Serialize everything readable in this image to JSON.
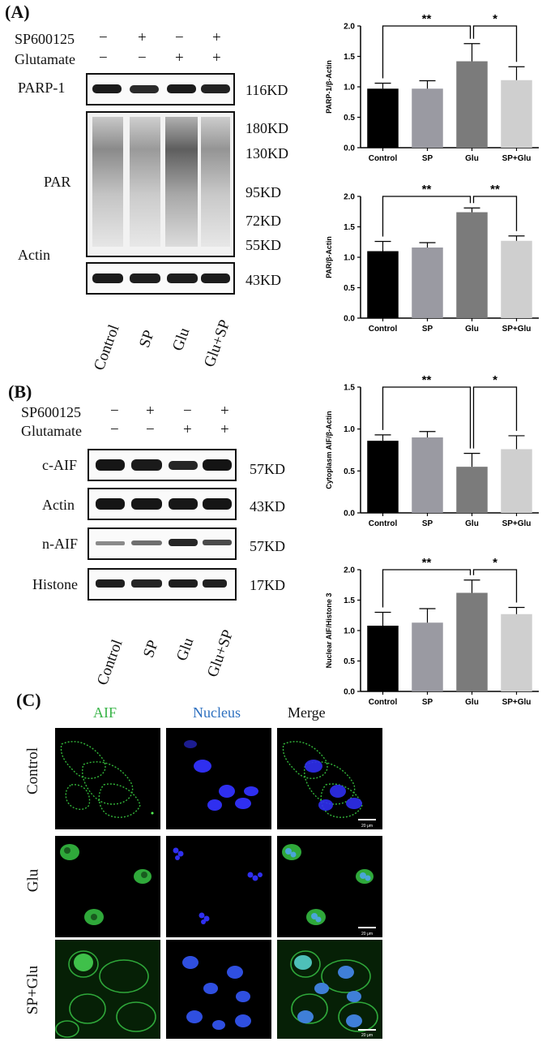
{
  "panels": {
    "A": "(A)",
    "B": "(B)",
    "C": "(C)"
  },
  "blotA": {
    "treatments": [
      {
        "label": "SP600125",
        "signs": [
          "−",
          "+",
          "−",
          "+"
        ]
      },
      {
        "label": "Glutamate",
        "signs": [
          "−",
          "−",
          "+",
          "+"
        ]
      }
    ],
    "bands": [
      {
        "label": "PARP-1",
        "kd": "116KD"
      },
      {
        "label": "PAR",
        "kd": ""
      },
      {
        "label": "Actin",
        "kd": "43KD"
      }
    ],
    "par_markers": [
      "180KD",
      "130KD",
      "95KD",
      "72KD",
      "55KD"
    ],
    "lanes": [
      "Control",
      "SP",
      "Glu",
      "Glu+SP"
    ]
  },
  "blotB": {
    "treatments": [
      {
        "label": "SP600125",
        "signs": [
          "−",
          "+",
          "−",
          "+"
        ]
      },
      {
        "label": "Glutamate",
        "signs": [
          "−",
          "−",
          "+",
          "+"
        ]
      }
    ],
    "bands": [
      {
        "label": "c-AIF",
        "kd": "57KD"
      },
      {
        "label": "Actin",
        "kd": "43KD"
      },
      {
        "label": "n-AIF",
        "kd": "57KD"
      },
      {
        "label": "Histone",
        "kd": "17KD"
      }
    ],
    "lanes": [
      "Control",
      "SP",
      "Glu",
      "Glu+SP"
    ]
  },
  "chart_data": [
    {
      "type": "bar",
      "categories": [
        "Control",
        "SP",
        "Glu",
        "SP+Glu"
      ],
      "values": [
        0.97,
        0.97,
        1.42,
        1.11
      ],
      "errors": [
        0.09,
        0.13,
        0.29,
        0.22
      ],
      "ylabel": "PARP-1/β-Actin",
      "ylim": [
        0,
        2.0
      ],
      "yticks": [
        "0.0",
        "0.5",
        "1.0",
        "1.5",
        "2.0"
      ],
      "colors": [
        "#000000",
        "#9a9aa2",
        "#7b7b7b",
        "#cfcfcf"
      ],
      "annotations": [
        {
          "from": "Control",
          "to": "Glu",
          "label": "**"
        },
        {
          "from": "Glu",
          "to": "SP+Glu",
          "label": "*"
        }
      ]
    },
    {
      "type": "bar",
      "categories": [
        "Control",
        "SP",
        "Glu",
        "SP+Glu"
      ],
      "values": [
        1.1,
        1.16,
        1.74,
        1.27
      ],
      "errors": [
        0.16,
        0.08,
        0.07,
        0.08
      ],
      "ylabel": "PAR/β-Actin",
      "ylim": [
        0,
        2.0
      ],
      "yticks": [
        "0.0",
        "0.5",
        "1.0",
        "1.5",
        "2.0"
      ],
      "colors": [
        "#000000",
        "#9a9aa2",
        "#7b7b7b",
        "#cfcfcf"
      ],
      "annotations": [
        {
          "from": "Control",
          "to": "Glu",
          "label": "**"
        },
        {
          "from": "Glu",
          "to": "SP+Glu",
          "label": "**"
        }
      ]
    },
    {
      "type": "bar",
      "categories": [
        "Control",
        "SP",
        "Glu",
        "SP+Glu"
      ],
      "values": [
        0.86,
        0.9,
        0.55,
        0.76
      ],
      "errors": [
        0.07,
        0.07,
        0.16,
        0.16
      ],
      "ylabel": "Cytoplasm AIF/β-Actin",
      "ylim": [
        0,
        1.5
      ],
      "yticks": [
        "0.0",
        "0.5",
        "1.0",
        "1.5"
      ],
      "colors": [
        "#000000",
        "#9a9aa2",
        "#7b7b7b",
        "#cfcfcf"
      ],
      "annotations": [
        {
          "from": "Control",
          "to": "Glu",
          "label": "**"
        },
        {
          "from": "Glu",
          "to": "SP+Glu",
          "label": "*"
        }
      ]
    },
    {
      "type": "bar",
      "categories": [
        "Control",
        "SP",
        "Glu",
        "SP+Glu"
      ],
      "values": [
        1.08,
        1.13,
        1.62,
        1.27
      ],
      "errors": [
        0.22,
        0.23,
        0.21,
        0.11
      ],
      "ylabel": "Nuclear AIF/Histone 3",
      "ylim": [
        0,
        2.0
      ],
      "yticks": [
        "0.0",
        "0.5",
        "1.0",
        "1.5",
        "2.0"
      ],
      "colors": [
        "#000000",
        "#9a9aa2",
        "#7b7b7b",
        "#cfcfcf"
      ],
      "annotations": [
        {
          "from": "Control",
          "to": "Glu",
          "label": "**"
        },
        {
          "from": "Glu",
          "to": "SP+Glu",
          "label": "*"
        }
      ]
    }
  ],
  "microscopy": {
    "columns": [
      {
        "label": "AIF",
        "color": "#3bb54a"
      },
      {
        "label": "Nucleus",
        "color": "#2c6fbf"
      },
      {
        "label": "Merge",
        "color": "#111111"
      }
    ],
    "rows": [
      "Control",
      "Glu",
      "SP+Glu"
    ],
    "scalebar": "20 μm"
  }
}
